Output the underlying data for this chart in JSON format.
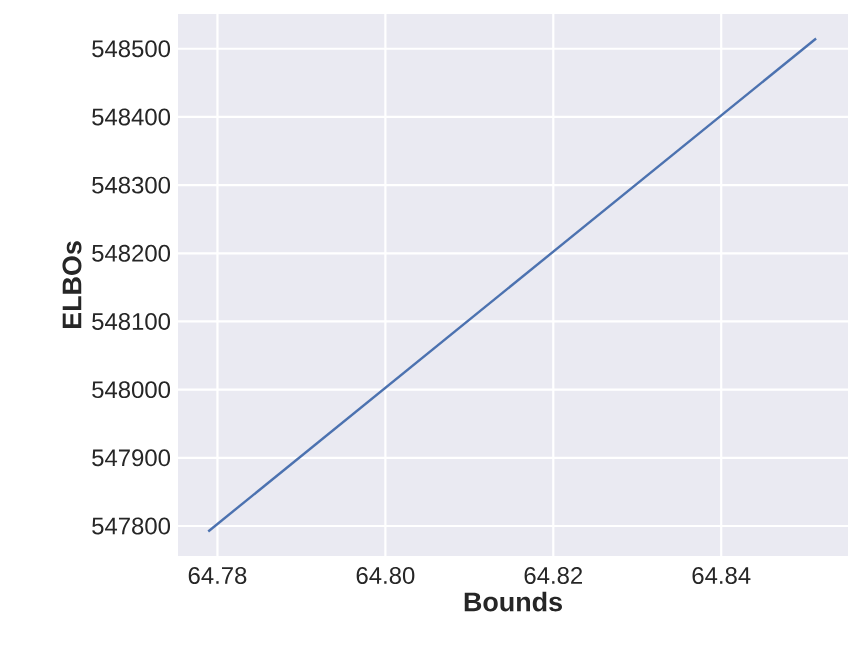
{
  "chart_data": {
    "type": "line",
    "xlabel": "Bounds",
    "ylabel": "ELBOs",
    "series": [
      {
        "color": "#4c72b0",
        "x": [
          64.7789,
          64.8513
        ],
        "values": [
          547792,
          548515
        ]
      }
    ],
    "xlim": [
      64.7753,
      64.8551
    ],
    "ylim": [
      547756,
      548551
    ],
    "xticks": [
      {
        "value": 64.78,
        "label": "64.78"
      },
      {
        "value": 64.8,
        "label": "64.80"
      },
      {
        "value": 64.82,
        "label": "64.82"
      },
      {
        "value": 64.84,
        "label": "64.84"
      }
    ],
    "yticks": [
      547800,
      547900,
      548000,
      548100,
      548200,
      548300,
      548400,
      548500
    ],
    "grid": true
  }
}
